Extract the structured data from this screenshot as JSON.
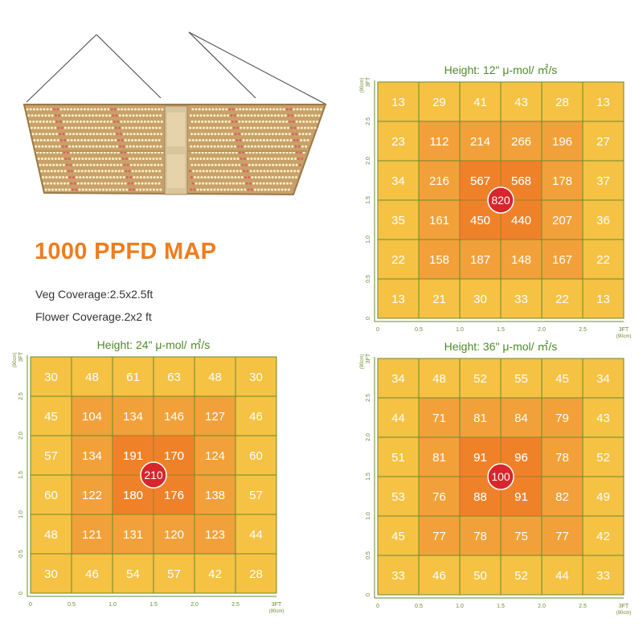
{
  "headline": "1000 PPFD MAP",
  "coverage": {
    "veg": "Veg Coverage:2.5x2.5ft",
    "flower": "Flower Coverage.2x2 ft"
  },
  "colors": {
    "cell_outer": "#f5c244",
    "cell_mid": "#f2a13a",
    "cell_inner": "#f08a2c",
    "cell_center": "#ee7324",
    "grid_line": "#6a8a2a",
    "title_text": "#4f8a2a",
    "center_marker": "#d7262c",
    "headline": "#f07c1c"
  },
  "chart_data": [
    {
      "type": "heatmap",
      "title": "Height: 12\" μ-mol/ ㎡/s",
      "x_ticks": [
        "0",
        "0.5",
        "1.0",
        "1.5",
        "2.0",
        "2.5",
        "3FT"
      ],
      "x_unit": "(90cm)",
      "y_ticks": [
        "0",
        "0.5",
        "1.0",
        "1.5",
        "2.0",
        "2.5",
        "3FT"
      ],
      "y_unit": "(90cm)",
      "xlim": [
        0,
        3
      ],
      "ylim": [
        0,
        3
      ],
      "values": [
        [
          13,
          29,
          41,
          43,
          28,
          13
        ],
        [
          23,
          112,
          214,
          266,
          196,
          27
        ],
        [
          34,
          216,
          567,
          568,
          178,
          37
        ],
        [
          35,
          161,
          450,
          440,
          207,
          36
        ],
        [
          22,
          158,
          187,
          148,
          167,
          22
        ],
        [
          13,
          21,
          30,
          33,
          22,
          13
        ]
      ],
      "center_value": 820
    },
    {
      "type": "heatmap",
      "title": "Height: 24\" μ-mol/ ㎡/s",
      "x_ticks": [
        "0",
        "0.5",
        "1.0",
        "1.5",
        "2.0",
        "2.5",
        "3FT"
      ],
      "x_unit": "(90cm)",
      "y_ticks": [
        "0",
        "0.5",
        "1.0",
        "1.5",
        "2.0",
        "2.5",
        "3FT"
      ],
      "y_unit": "(90cm)",
      "xlim": [
        0,
        3
      ],
      "ylim": [
        0,
        3
      ],
      "values": [
        [
          30,
          48,
          61,
          63,
          48,
          30
        ],
        [
          45,
          104,
          134,
          146,
          127,
          46
        ],
        [
          57,
          134,
          191,
          170,
          124,
          60
        ],
        [
          60,
          122,
          180,
          176,
          138,
          57
        ],
        [
          48,
          121,
          131,
          120,
          123,
          44
        ],
        [
          30,
          46,
          54,
          57,
          42,
          28
        ]
      ],
      "center_value": 210
    },
    {
      "type": "heatmap",
      "title": "Height: 36\" μ-mol/ ㎡/s",
      "x_ticks": [
        "0",
        "0.5",
        "1.0",
        "1.5",
        "2.0",
        "2.5",
        "3FT"
      ],
      "x_unit": "(90cm)",
      "y_ticks": [
        "0",
        "0.5",
        "1.0",
        "1.5",
        "2.0",
        "2.5",
        "3FT"
      ],
      "y_unit": "(90cm)",
      "xlim": [
        0,
        3
      ],
      "ylim": [
        0,
        3
      ],
      "values": [
        [
          34,
          48,
          52,
          55,
          45,
          34
        ],
        [
          44,
          71,
          81,
          84,
          79,
          43
        ],
        [
          51,
          81,
          91,
          96,
          78,
          52
        ],
        [
          53,
          76,
          88,
          91,
          82,
          49
        ],
        [
          45,
          77,
          78,
          75,
          77,
          42
        ],
        [
          33,
          46,
          50,
          52,
          44,
          33
        ]
      ],
      "center_value": 100
    }
  ]
}
